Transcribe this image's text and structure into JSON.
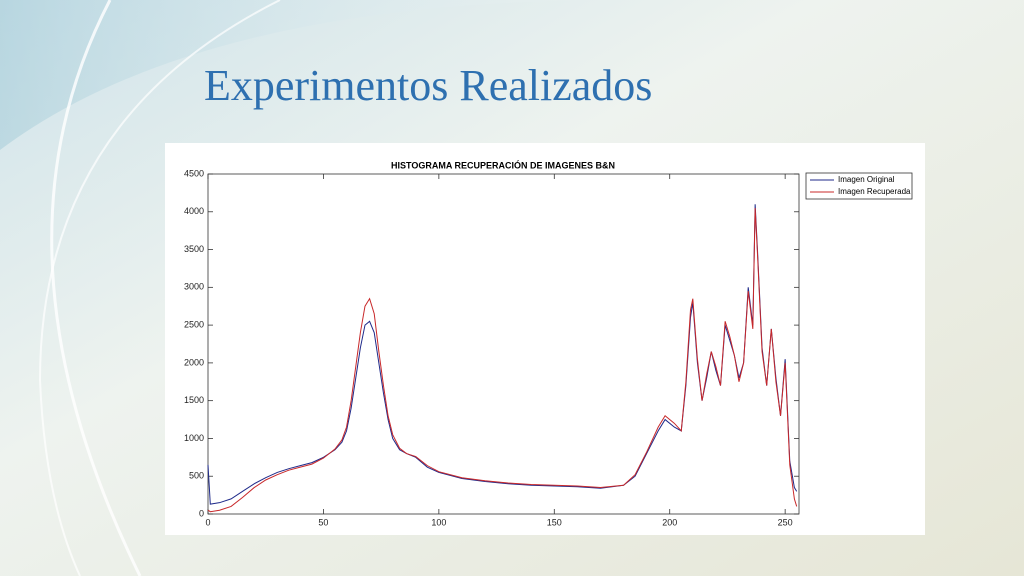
{
  "slide": {
    "title": "Experimentos Realizados"
  },
  "chart_data": {
    "type": "line",
    "title": "HISTOGRAMA RECUPERACIÓN DE IMAGENES B&N",
    "x": [
      0,
      1,
      5,
      10,
      15,
      20,
      25,
      30,
      35,
      40,
      45,
      50,
      55,
      58,
      60,
      62,
      64,
      66,
      68,
      70,
      72,
      74,
      76,
      78,
      80,
      83,
      86,
      90,
      95,
      100,
      110,
      120,
      130,
      140,
      150,
      160,
      170,
      180,
      185,
      190,
      195,
      198,
      202,
      205,
      207,
      209,
      210,
      212,
      214,
      216,
      218,
      220,
      222,
      224,
      226,
      228,
      230,
      232,
      234,
      236,
      237,
      238,
      240,
      242,
      244,
      246,
      248,
      250,
      252,
      254,
      255
    ],
    "series": [
      {
        "name": "Imagen Original",
        "color": "#1f2a8a",
        "values": [
          650,
          130,
          150,
          200,
          300,
          400,
          480,
          550,
          600,
          640,
          680,
          750,
          850,
          950,
          1100,
          1400,
          1800,
          2200,
          2500,
          2550,
          2400,
          2000,
          1600,
          1250,
          1000,
          850,
          800,
          750,
          620,
          550,
          470,
          430,
          400,
          380,
          370,
          360,
          340,
          380,
          500,
          800,
          1100,
          1250,
          1150,
          1100,
          1700,
          2600,
          2800,
          2000,
          1500,
          1800,
          2150,
          1900,
          1700,
          2500,
          2300,
          2100,
          1800,
          2000,
          3000,
          2500,
          4100,
          3500,
          2200,
          1700,
          2450,
          1800,
          1300,
          2050,
          700,
          350,
          300
        ]
      },
      {
        "name": "Imagen Recuperada",
        "color": "#c8282a",
        "values": [
          50,
          30,
          50,
          100,
          220,
          350,
          450,
          520,
          580,
          620,
          660,
          740,
          860,
          980,
          1150,
          1500,
          1950,
          2400,
          2750,
          2850,
          2650,
          2150,
          1700,
          1300,
          1050,
          870,
          800,
          760,
          640,
          560,
          480,
          440,
          410,
          390,
          380,
          370,
          350,
          380,
          520,
          820,
          1150,
          1300,
          1200,
          1100,
          1750,
          2700,
          2850,
          2050,
          1500,
          1850,
          2150,
          1950,
          1700,
          2550,
          2350,
          2100,
          1750,
          2000,
          2950,
          2450,
          4050,
          3450,
          2150,
          1700,
          2450,
          1750,
          1300,
          2000,
          650,
          200,
          100
        ]
      }
    ],
    "xlim": [
      0,
      256
    ],
    "xticks": [
      0,
      50,
      100,
      150,
      200,
      250
    ],
    "ylim": [
      0,
      4500
    ],
    "yticks": [
      0,
      500,
      1000,
      1500,
      2000,
      2500,
      3000,
      3500,
      4000,
      4500
    ],
    "grid": false,
    "legend": "outside-right"
  }
}
